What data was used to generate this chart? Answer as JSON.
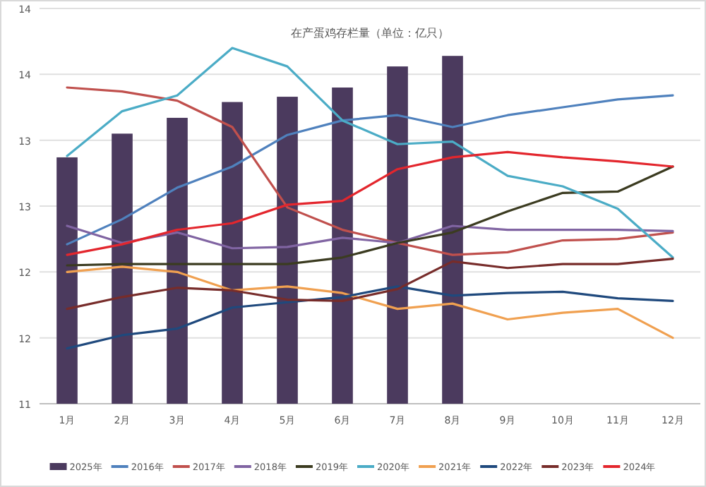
{
  "chart_data": {
    "type": "line",
    "title": "在产蛋鸡存栏量（单位：亿只）",
    "categories": [
      "1月",
      "2月",
      "3月",
      "4月",
      "5月",
      "6月",
      "7月",
      "8月",
      "9月",
      "10月",
      "11月",
      "12月"
    ],
    "series": [
      {
        "name": "2025年",
        "type": "bar",
        "color": "#4b3a5e",
        "values": [
          12.87,
          13.05,
          13.17,
          13.29,
          13.33,
          13.4,
          13.56,
          13.64,
          null,
          null,
          null,
          null
        ]
      },
      {
        "name": "2016年",
        "color": "#4f81bd",
        "values": [
          12.21,
          12.4,
          12.64,
          12.8,
          13.04,
          13.15,
          13.19,
          13.1,
          13.19,
          13.25,
          13.31,
          13.34
        ]
      },
      {
        "name": "2017年",
        "color": "#c0504d",
        "values": [
          13.4,
          13.37,
          13.3,
          13.1,
          12.49,
          12.32,
          12.22,
          12.13,
          12.15,
          12.24,
          12.25,
          12.3
        ]
      },
      {
        "name": "2018年",
        "color": "#8064a2",
        "values": [
          12.35,
          12.22,
          12.3,
          12.18,
          12.19,
          12.26,
          12.22,
          12.35,
          12.32,
          12.32,
          12.32,
          12.31
        ]
      },
      {
        "name": "2019年",
        "color": "#3b3b20",
        "values": [
          12.05,
          12.06,
          12.06,
          12.06,
          12.06,
          12.11,
          12.22,
          12.3,
          12.46,
          12.6,
          12.61,
          12.8
        ]
      },
      {
        "name": "2020年",
        "color": "#4bacc6",
        "values": [
          12.88,
          13.22,
          13.34,
          13.7,
          13.56,
          13.15,
          12.97,
          12.99,
          12.73,
          12.65,
          12.48,
          12.11
        ]
      },
      {
        "name": "2021年",
        "color": "#f0a050",
        "values": [
          12.0,
          12.04,
          12.0,
          11.86,
          11.89,
          11.84,
          11.72,
          11.76,
          11.64,
          11.69,
          11.72,
          11.5
        ]
      },
      {
        "name": "2022年",
        "color": "#1f497d",
        "values": [
          11.42,
          11.52,
          11.57,
          11.73,
          11.77,
          11.81,
          11.89,
          11.82,
          11.84,
          11.85,
          11.8,
          11.78
        ]
      },
      {
        "name": "2023年",
        "color": "#772c2a",
        "values": [
          11.72,
          11.81,
          11.88,
          11.86,
          11.79,
          11.78,
          11.87,
          12.08,
          12.03,
          12.06,
          12.06,
          12.1
        ]
      },
      {
        "name": "2024年",
        "color": "#e3262d",
        "values": [
          12.13,
          12.21,
          12.32,
          12.37,
          12.51,
          12.54,
          12.78,
          12.87,
          12.91,
          12.87,
          12.84,
          12.8
        ]
      }
    ],
    "ylim": [
      11,
      14
    ],
    "yticks": [
      11,
      {
        "value": 11.5,
        "label": "12"
      },
      12,
      {
        "value": 12.5,
        "label": "13"
      },
      13,
      {
        "value": 13.5,
        "label": "14"
      },
      14
    ],
    "grid": "y",
    "legend": "bottom"
  }
}
